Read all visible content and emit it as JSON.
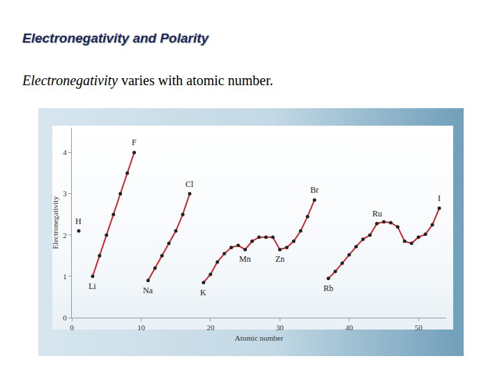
{
  "chart_data": {
    "type": "line",
    "title": "Electronegativity and Polarity",
    "subtitle": "Electronegativity varies with atomic number.",
    "xlabel": "Atomic number",
    "ylabel": "Electronegativity",
    "x": [
      1,
      2,
      3,
      4,
      5,
      6,
      7,
      8,
      9,
      10,
      11,
      12,
      13,
      14,
      15,
      16,
      17,
      18,
      19,
      20,
      21,
      22,
      23,
      24,
      25,
      26,
      27,
      28,
      29,
      30,
      31,
      32,
      33,
      34,
      35,
      36,
      37,
      38,
      39,
      40,
      41,
      42,
      43,
      44,
      45,
      46,
      47,
      48,
      49,
      50,
      51,
      52,
      53
    ],
    "values": [
      2.1,
      null,
      1.0,
      1.5,
      2.0,
      2.5,
      3.0,
      3.5,
      4.0,
      null,
      0.9,
      1.2,
      1.5,
      1.8,
      2.1,
      2.5,
      3.0,
      null,
      0.85,
      1.05,
      1.35,
      1.55,
      1.7,
      1.75,
      1.65,
      1.85,
      1.95,
      1.95,
      1.95,
      1.65,
      1.7,
      1.85,
      2.1,
      2.45,
      2.85,
      null,
      0.95,
      1.12,
      1.32,
      1.52,
      1.72,
      1.9,
      2.0,
      2.28,
      2.32,
      2.3,
      2.2,
      1.85,
      1.8,
      1.95,
      2.02,
      2.25,
      2.65
    ],
    "color": "#c8262b",
    "marker": "circle",
    "line_style": "solid",
    "xlim": [
      0,
      54
    ],
    "ylim": [
      0,
      4.6
    ],
    "xticks": [
      0,
      10,
      20,
      30,
      40,
      50
    ],
    "yticks": [
      0,
      1,
      2,
      3,
      4
    ],
    "grid": false,
    "annotations": [
      {
        "x": 1,
        "text": "H"
      },
      {
        "x": 3,
        "text": "Li"
      },
      {
        "x": 9,
        "text": "F"
      },
      {
        "x": 11,
        "text": "Na"
      },
      {
        "x": 17,
        "text": "Cl"
      },
      {
        "x": 19,
        "text": "K"
      },
      {
        "x": 25,
        "text": "Mn"
      },
      {
        "x": 30,
        "text": "Zn"
      },
      {
        "x": 35,
        "text": "Br"
      },
      {
        "x": 37,
        "text": "Rb"
      },
      {
        "x": 44,
        "text": "Ru"
      },
      {
        "x": 53,
        "text": "I"
      }
    ]
  }
}
